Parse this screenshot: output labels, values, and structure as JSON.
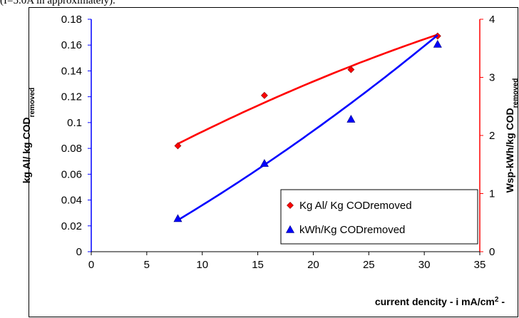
{
  "page": {
    "caption": "(I=5.0A in approximately)."
  },
  "chart_data": {
    "type": "scatter",
    "title": "",
    "xlabel": "current dencity - i mA/cm",
    "xlabel_sup": "2",
    "xlabel_suffix": " -",
    "xlim": [
      0,
      35
    ],
    "x_ticks": [
      "0",
      "5",
      "10",
      "15",
      "20",
      "25",
      "30",
      "35"
    ],
    "y_left": {
      "label": "kg Al/ kg COD",
      "label_sub": "removed",
      "lim": [
        0,
        0.18
      ],
      "ticks": [
        "0",
        "0.02",
        "0.04",
        "0.06",
        "0.08",
        "0.1",
        "0.12",
        "0.14",
        "0.16",
        "0.18"
      ],
      "color": "#0000ff"
    },
    "y_right": {
      "label": "Wsp-kWh/kg COD",
      "label_sub": "removed",
      "lim": [
        0,
        4
      ],
      "ticks": [
        "0",
        "1",
        "2",
        "3",
        "4"
      ],
      "color": "#ff0000"
    },
    "series": [
      {
        "name": "Kg Al/ Kg   CODremoved",
        "axis": "left",
        "marker": "diamond",
        "color": "#ff0000",
        "x": [
          7.8,
          15.6,
          23.4,
          31.2
        ],
        "y": [
          0.082,
          0.121,
          0.141,
          0.167
        ],
        "trend": {
          "from": 7.8,
          "to": 31.2,
          "coef": [
            0.0479,
            0.004807,
            -3.06e-05
          ]
        }
      },
      {
        "name": "kWh/Kg CODremoved",
        "axis": "right",
        "marker": "triangle",
        "color": "#0000ff",
        "x": [
          7.8,
          15.6,
          23.4,
          31.2
        ],
        "y": [
          0.57,
          1.52,
          2.28,
          3.57
        ],
        "trend": {
          "from": 7.8,
          "to": 31.2,
          "coef": [
            -0.3,
            0.101,
            0.0009
          ]
        }
      }
    ],
    "legend": {
      "placement": "bottom-right",
      "border": true
    },
    "grid": false
  }
}
